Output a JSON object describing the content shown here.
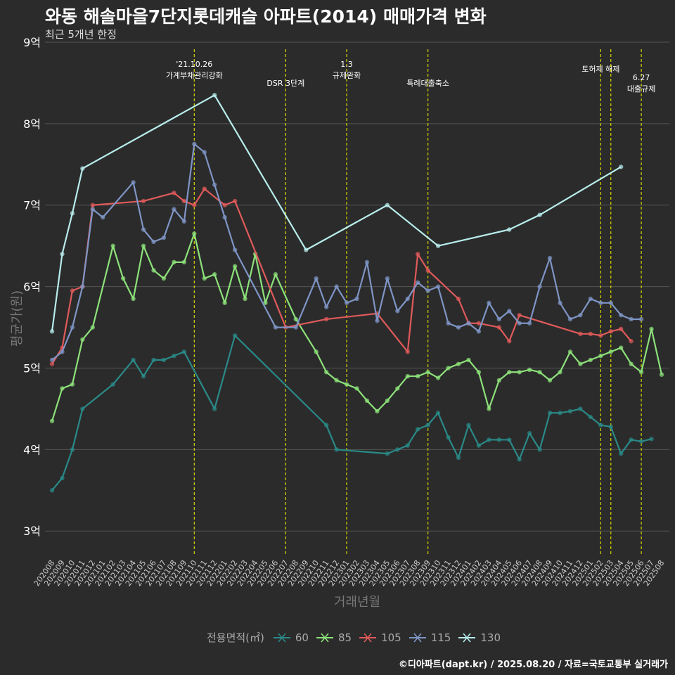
{
  "title": "와동 해솔마을7단지롯데캐슬 아파트(2014) 매매가격 변화",
  "subtitle": "최근 5개년 한정",
  "footer": "©디아파트(dapt.kr) / 2025.08.20 / 자료=국토교통부 실거래가",
  "chart_data": {
    "type": "line",
    "xlabel": "거래년월",
    "ylabel": "평균가(원)",
    "ylim": [
      2.7,
      9.0
    ],
    "y_ticks": [
      3,
      4,
      5,
      6,
      7,
      8,
      9
    ],
    "y_tick_labels": [
      "3억",
      "4억",
      "5억",
      "6억",
      "7억",
      "8억",
      "9억"
    ],
    "grid": true,
    "legend_position": "bottom",
    "legend_title": "전용면적(㎡)",
    "categories": [
      "202008",
      "202009",
      "202010",
      "202011",
      "202012",
      "202101",
      "202102",
      "202103",
      "202104",
      "202105",
      "202106",
      "202107",
      "202108",
      "202109",
      "202110",
      "202111",
      "202112",
      "202201",
      "202202",
      "202203",
      "202204",
      "202205",
      "202206",
      "202207",
      "202208",
      "202209",
      "202210",
      "202211",
      "202212",
      "202301",
      "202302",
      "202303",
      "202304",
      "202305",
      "202306",
      "202307",
      "202308",
      "202309",
      "202310",
      "202311",
      "202312",
      "202401",
      "202402",
      "202403",
      "202404",
      "202405",
      "202406",
      "202407",
      "202408",
      "202409",
      "202410",
      "202411",
      "202412",
      "202501",
      "202502",
      "202503",
      "202504",
      "202505",
      "202506",
      "202507",
      "202508"
    ],
    "series": [
      {
        "name": "60",
        "color": "#2a8a88",
        "values": [
          3.5,
          3.65,
          4.0,
          4.5,
          null,
          null,
          4.8,
          null,
          5.1,
          4.9,
          5.1,
          5.1,
          5.15,
          5.2,
          null,
          null,
          4.5,
          null,
          5.4,
          null,
          null,
          null,
          null,
          null,
          null,
          null,
          null,
          4.3,
          4.0,
          null,
          null,
          null,
          null,
          3.95,
          4.0,
          4.05,
          4.25,
          4.3,
          4.45,
          4.15,
          3.9,
          4.3,
          4.05,
          4.12,
          4.12,
          4.12,
          3.88,
          4.2,
          4.0,
          4.45,
          4.45,
          4.47,
          4.5,
          4.4,
          4.3,
          4.28,
          3.95,
          4.12,
          4.1,
          4.13,
          null
        ]
      },
      {
        "name": "85",
        "color": "#8de27a",
        "values": [
          4.35,
          4.75,
          4.8,
          5.35,
          5.5,
          null,
          6.5,
          6.1,
          5.85,
          6.5,
          6.2,
          6.1,
          6.3,
          6.3,
          6.65,
          6.1,
          6.15,
          5.8,
          6.25,
          5.85,
          6.4,
          5.8,
          6.15,
          null,
          5.6,
          null,
          5.2,
          4.95,
          4.85,
          4.8,
          4.75,
          4.6,
          4.47,
          4.6,
          4.75,
          4.9,
          4.9,
          4.95,
          4.88,
          5.0,
          5.05,
          5.1,
          4.95,
          4.5,
          4.85,
          4.95,
          4.95,
          4.98,
          4.95,
          4.85,
          4.95,
          5.2,
          5.05,
          5.1,
          5.15,
          5.2,
          5.25,
          5.05,
          4.95,
          5.48,
          4.92
        ]
      },
      {
        "name": "105",
        "color": "#e05a5a",
        "values": [
          5.05,
          5.25,
          5.95,
          6.0,
          7.0,
          null,
          null,
          null,
          null,
          7.05,
          null,
          null,
          7.15,
          7.05,
          7.0,
          7.2,
          null,
          7.0,
          7.05,
          null,
          null,
          null,
          null,
          5.5,
          null,
          null,
          null,
          5.6,
          null,
          null,
          null,
          null,
          5.67,
          null,
          null,
          5.2,
          6.4,
          6.2,
          null,
          null,
          5.85,
          5.55,
          5.55,
          null,
          5.5,
          5.33,
          5.65,
          null,
          null,
          null,
          null,
          null,
          5.42,
          5.42,
          5.4,
          5.45,
          5.48,
          5.33,
          null,
          null,
          null
        ]
      },
      {
        "name": "115",
        "color": "#7f95c6",
        "values": [
          5.1,
          5.2,
          5.5,
          6.0,
          6.95,
          6.85,
          null,
          null,
          7.28,
          6.7,
          6.55,
          6.6,
          6.95,
          6.8,
          7.75,
          7.65,
          7.25,
          6.85,
          6.45,
          null,
          null,
          null,
          5.5,
          null,
          5.5,
          null,
          6.1,
          5.75,
          6.0,
          5.8,
          5.85,
          6.3,
          5.58,
          6.1,
          5.7,
          5.85,
          6.05,
          5.95,
          6.0,
          5.55,
          5.5,
          5.55,
          5.45,
          5.8,
          5.6,
          5.7,
          5.55,
          5.55,
          6.0,
          6.35,
          5.8,
          5.6,
          5.65,
          5.85,
          5.8,
          5.8,
          5.65,
          5.6,
          5.6,
          null,
          null
        ]
      },
      {
        "name": "130",
        "color": "#b8ecec",
        "values": [
          5.45,
          6.4,
          6.9,
          7.45,
          null,
          null,
          null,
          null,
          null,
          null,
          null,
          null,
          null,
          null,
          null,
          null,
          8.35,
          null,
          null,
          null,
          null,
          null,
          null,
          null,
          null,
          6.45,
          null,
          null,
          null,
          null,
          null,
          null,
          null,
          7.0,
          null,
          null,
          null,
          null,
          6.5,
          null,
          null,
          null,
          null,
          null,
          null,
          6.7,
          null,
          null,
          6.88,
          null,
          null,
          null,
          null,
          null,
          null,
          null,
          7.47,
          null,
          null,
          null,
          null
        ]
      }
    ],
    "annotations": [
      {
        "x": "202110",
        "text_lines": [
          "'21.10.26",
          "가계부채관리강화"
        ]
      },
      {
        "x": "202207",
        "text_lines": [
          "DSR 3단계"
        ]
      },
      {
        "x": "202301",
        "text_lines": [
          "1.3",
          "규제완화"
        ]
      },
      {
        "x": "202309",
        "text_lines": [
          "특례대출축소"
        ]
      },
      {
        "x": "202502",
        "text_lines": [
          "토허제 해제"
        ]
      },
      {
        "x": "202503",
        "text_lines": [
          ""
        ]
      },
      {
        "x": "202506",
        "text_lines": [
          "6.27",
          "대출규제"
        ]
      }
    ]
  }
}
